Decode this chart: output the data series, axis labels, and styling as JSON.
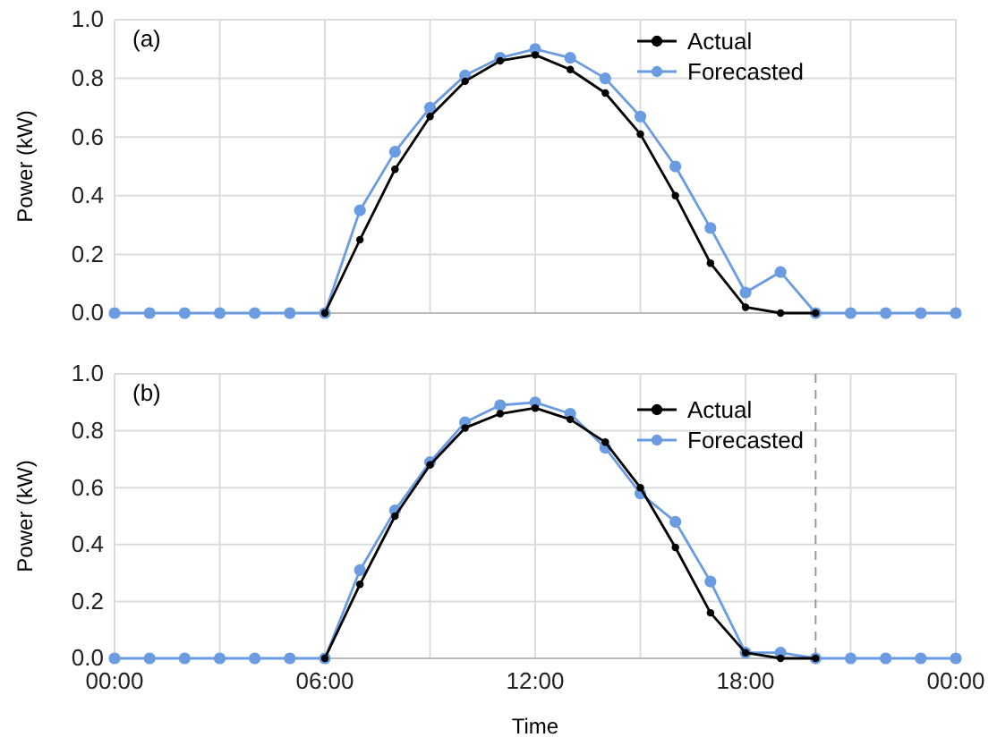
{
  "chart_data": [
    {
      "type": "line",
      "annotations": [
        "(a)"
      ],
      "ylabel": "Power (kW)",
      "x": [
        0,
        1,
        2,
        3,
        4,
        5,
        6,
        7,
        8,
        9,
        10,
        11,
        12,
        13,
        14,
        15,
        16,
        17,
        18,
        19,
        20,
        21,
        22,
        23,
        24
      ],
      "series": [
        {
          "name": "Actual",
          "color": "#000000",
          "values": [
            null,
            null,
            null,
            null,
            null,
            null,
            0,
            0.25,
            0.49,
            0.67,
            0.79,
            0.86,
            0.88,
            0.83,
            0.75,
            0.61,
            0.4,
            0.17,
            0.02,
            0,
            0,
            null,
            null,
            null,
            null
          ]
        },
        {
          "name": "Forecasted",
          "color": "#6b9be0",
          "values": [
            0,
            0,
            0,
            0,
            0,
            0,
            0,
            0.35,
            0.55,
            0.7,
            0.81,
            0.87,
            0.9,
            0.87,
            0.8,
            0.67,
            0.5,
            0.29,
            0.07,
            0.14,
            0,
            0,
            0,
            0,
            0
          ]
        }
      ],
      "xlim": [
        0,
        24
      ],
      "xticks": [
        {
          "value": 0,
          "label": null
        },
        {
          "value": 3,
          "label": null
        },
        {
          "value": 6,
          "label": null
        },
        {
          "value": 9,
          "label": null
        },
        {
          "value": 12,
          "label": null
        },
        {
          "value": 15,
          "label": null
        },
        {
          "value": 18,
          "label": null
        },
        {
          "value": 21,
          "label": null
        },
        {
          "value": 24,
          "label": null
        }
      ],
      "ylim": [
        0,
        1
      ],
      "yticks": [
        {
          "value": 0,
          "label": "0.0"
        },
        {
          "value": 0.2,
          "label": "0.2"
        },
        {
          "value": 0.4,
          "label": "0.4"
        },
        {
          "value": 0.6,
          "label": "0.6"
        },
        {
          "value": 0.8,
          "label": "0.8"
        },
        {
          "value": 1,
          "label": "1.0"
        }
      ],
      "tick_labels": "y",
      "grid": true,
      "legend": "top right",
      "marker": "circle",
      "line_style": "solid"
    },
    {
      "type": "line",
      "annotations": [
        "(b)"
      ],
      "ylabel": "Power (kW)",
      "xlabel": "Time",
      "x": [
        0,
        1,
        2,
        3,
        4,
        5,
        6,
        7,
        8,
        9,
        10,
        11,
        12,
        13,
        14,
        15,
        16,
        17,
        18,
        19,
        20,
        21,
        22,
        23,
        24
      ],
      "series": [
        {
          "name": "Actual",
          "color": "#000000",
          "values": [
            null,
            null,
            null,
            null,
            null,
            null,
            0,
            0.26,
            0.5,
            0.68,
            0.81,
            0.86,
            0.88,
            0.84,
            0.76,
            0.6,
            0.39,
            0.16,
            0.02,
            0,
            0,
            null,
            null,
            null,
            null
          ]
        },
        {
          "name": "Forecasted",
          "color": "#6b9be0",
          "values": [
            0,
            0,
            0,
            0,
            0,
            0,
            0,
            0.31,
            0.52,
            0.69,
            0.83,
            0.89,
            0.9,
            0.86,
            0.74,
            0.58,
            0.48,
            0.27,
            0.02,
            0.02,
            0,
            0,
            0,
            0,
            0
          ]
        }
      ],
      "xlim": [
        0,
        24
      ],
      "xticks": [
        {
          "value": 0,
          "label": "00:00"
        },
        {
          "value": 3,
          "label": null
        },
        {
          "value": 6,
          "label": "06:00"
        },
        {
          "value": 9,
          "label": null
        },
        {
          "value": 12,
          "label": "12:00"
        },
        {
          "value": 15,
          "label": null
        },
        {
          "value": 18,
          "label": "18:00"
        },
        {
          "value": 21,
          "label": null
        },
        {
          "value": 24,
          "label": "00:00"
        }
      ],
      "ylim": [
        0,
        1
      ],
      "yticks": [
        {
          "value": 0,
          "label": "0.0"
        },
        {
          "value": 0.2,
          "label": "0.2"
        },
        {
          "value": 0.4,
          "label": "0.4"
        },
        {
          "value": 0.6,
          "label": "0.6"
        },
        {
          "value": 0.8,
          "label": "0.8"
        },
        {
          "value": 1,
          "label": "1.0"
        }
      ],
      "ref_lines": [
        {
          "axis": "x",
          "value": 20,
          "label": null,
          "color": "#999999",
          "line_style": "dashed"
        }
      ],
      "grid": true,
      "legend": "top right",
      "marker": "circle",
      "line_style": "solid"
    }
  ]
}
